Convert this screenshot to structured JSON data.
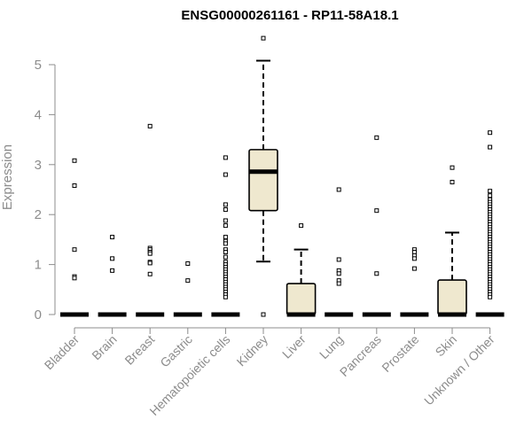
{
  "chart_data": {
    "type": "box",
    "title": "ENSG00000261161 - RP11-58A18.1",
    "ylabel": "Expression",
    "ylim": [
      0,
      5.6
    ],
    "yticks": [
      0,
      1,
      2,
      3,
      4,
      5
    ],
    "box_fill": "#efe8cf",
    "categories": [
      "Bladder",
      "Brain",
      "Breast",
      "Gastric",
      "Hematopoietic cells",
      "Kidney",
      "Liver",
      "Lung",
      "Pancreas",
      "Prostate",
      "Skin",
      "Unknown / Other"
    ],
    "boxes": [
      {
        "category": "Bladder",
        "q1": 0,
        "median": 0,
        "q3": 0,
        "whisker_low": 0,
        "whisker_high": 0,
        "outliers": [
          3.08,
          2.58,
          1.3,
          0.76,
          0.73
        ]
      },
      {
        "category": "Brain",
        "q1": 0,
        "median": 0,
        "q3": 0,
        "whisker_low": 0,
        "whisker_high": 0,
        "outliers": [
          1.55,
          1.12,
          0.88
        ]
      },
      {
        "category": "Breast",
        "q1": 0,
        "median": 0,
        "q3": 0,
        "whisker_low": 0,
        "whisker_high": 0,
        "outliers": [
          3.77,
          1.33,
          1.3,
          1.25,
          1.22,
          1.05,
          1.03,
          0.81
        ]
      },
      {
        "category": "Gastric",
        "q1": 0,
        "median": 0,
        "q3": 0,
        "whisker_low": 0,
        "whisker_high": 0,
        "outliers": [
          1.02,
          0.68
        ]
      },
      {
        "category": "Hematopoietic cells",
        "q1": 0,
        "median": 0,
        "q3": 0,
        "whisker_low": 0,
        "whisker_high": 0,
        "outliers": [
          3.14,
          2.8,
          2.2,
          2.1,
          1.88,
          1.78,
          1.55,
          1.47,
          1.42,
          1.3,
          1.25,
          1.15,
          1.05,
          1.0,
          0.95,
          0.9,
          0.85,
          0.8,
          0.75,
          0.7,
          0.65,
          0.6,
          0.55,
          0.5,
          0.45,
          0.4,
          0.35
        ]
      },
      {
        "category": "Kidney",
        "q1": 2.08,
        "median": 2.86,
        "q3": 3.3,
        "whisker_low": 1.06,
        "whisker_high": 5.08,
        "outliers": [
          5.53,
          0
        ]
      },
      {
        "category": "Liver",
        "q1": 0,
        "median": 0,
        "q3": 0.62,
        "whisker_low": 0,
        "whisker_high": 1.3,
        "outliers": [
          1.78
        ]
      },
      {
        "category": "Lung",
        "q1": 0,
        "median": 0,
        "q3": 0,
        "whisker_low": 0,
        "whisker_high": 0,
        "outliers": [
          2.5,
          1.1,
          0.88,
          0.82,
          0.68,
          0.62
        ]
      },
      {
        "category": "Pancreas",
        "q1": 0,
        "median": 0,
        "q3": 0,
        "whisker_low": 0,
        "whisker_high": 0,
        "outliers": [
          3.54,
          2.08,
          0.82
        ]
      },
      {
        "category": "Prostate",
        "q1": 0,
        "median": 0,
        "q3": 0,
        "whisker_low": 0,
        "whisker_high": 0,
        "outliers": [
          1.3,
          1.25,
          1.18,
          1.12,
          0.92
        ]
      },
      {
        "category": "Skin",
        "q1": 0,
        "median": 0,
        "q3": 0.69,
        "whisker_low": 0,
        "whisker_high": 1.64,
        "outliers": [
          2.94,
          2.65
        ]
      },
      {
        "category": "Unknown / Other",
        "q1": 0,
        "median": 0,
        "q3": 0,
        "whisker_low": 0,
        "whisker_high": 0,
        "outliers": [
          3.64,
          3.35,
          2.47,
          2.38,
          2.3,
          2.25,
          2.2,
          2.15,
          2.1,
          2.05,
          2.0,
          1.95,
          1.9,
          1.85,
          1.8,
          1.75,
          1.7,
          1.65,
          1.6,
          1.55,
          1.5,
          1.45,
          1.4,
          1.35,
          1.3,
          1.25,
          1.2,
          1.15,
          1.1,
          1.05,
          1.0,
          0.95,
          0.9,
          0.85,
          0.8,
          0.75,
          0.7,
          0.65,
          0.6,
          0.55,
          0.5,
          0.45,
          0.4,
          0.35
        ]
      }
    ]
  }
}
